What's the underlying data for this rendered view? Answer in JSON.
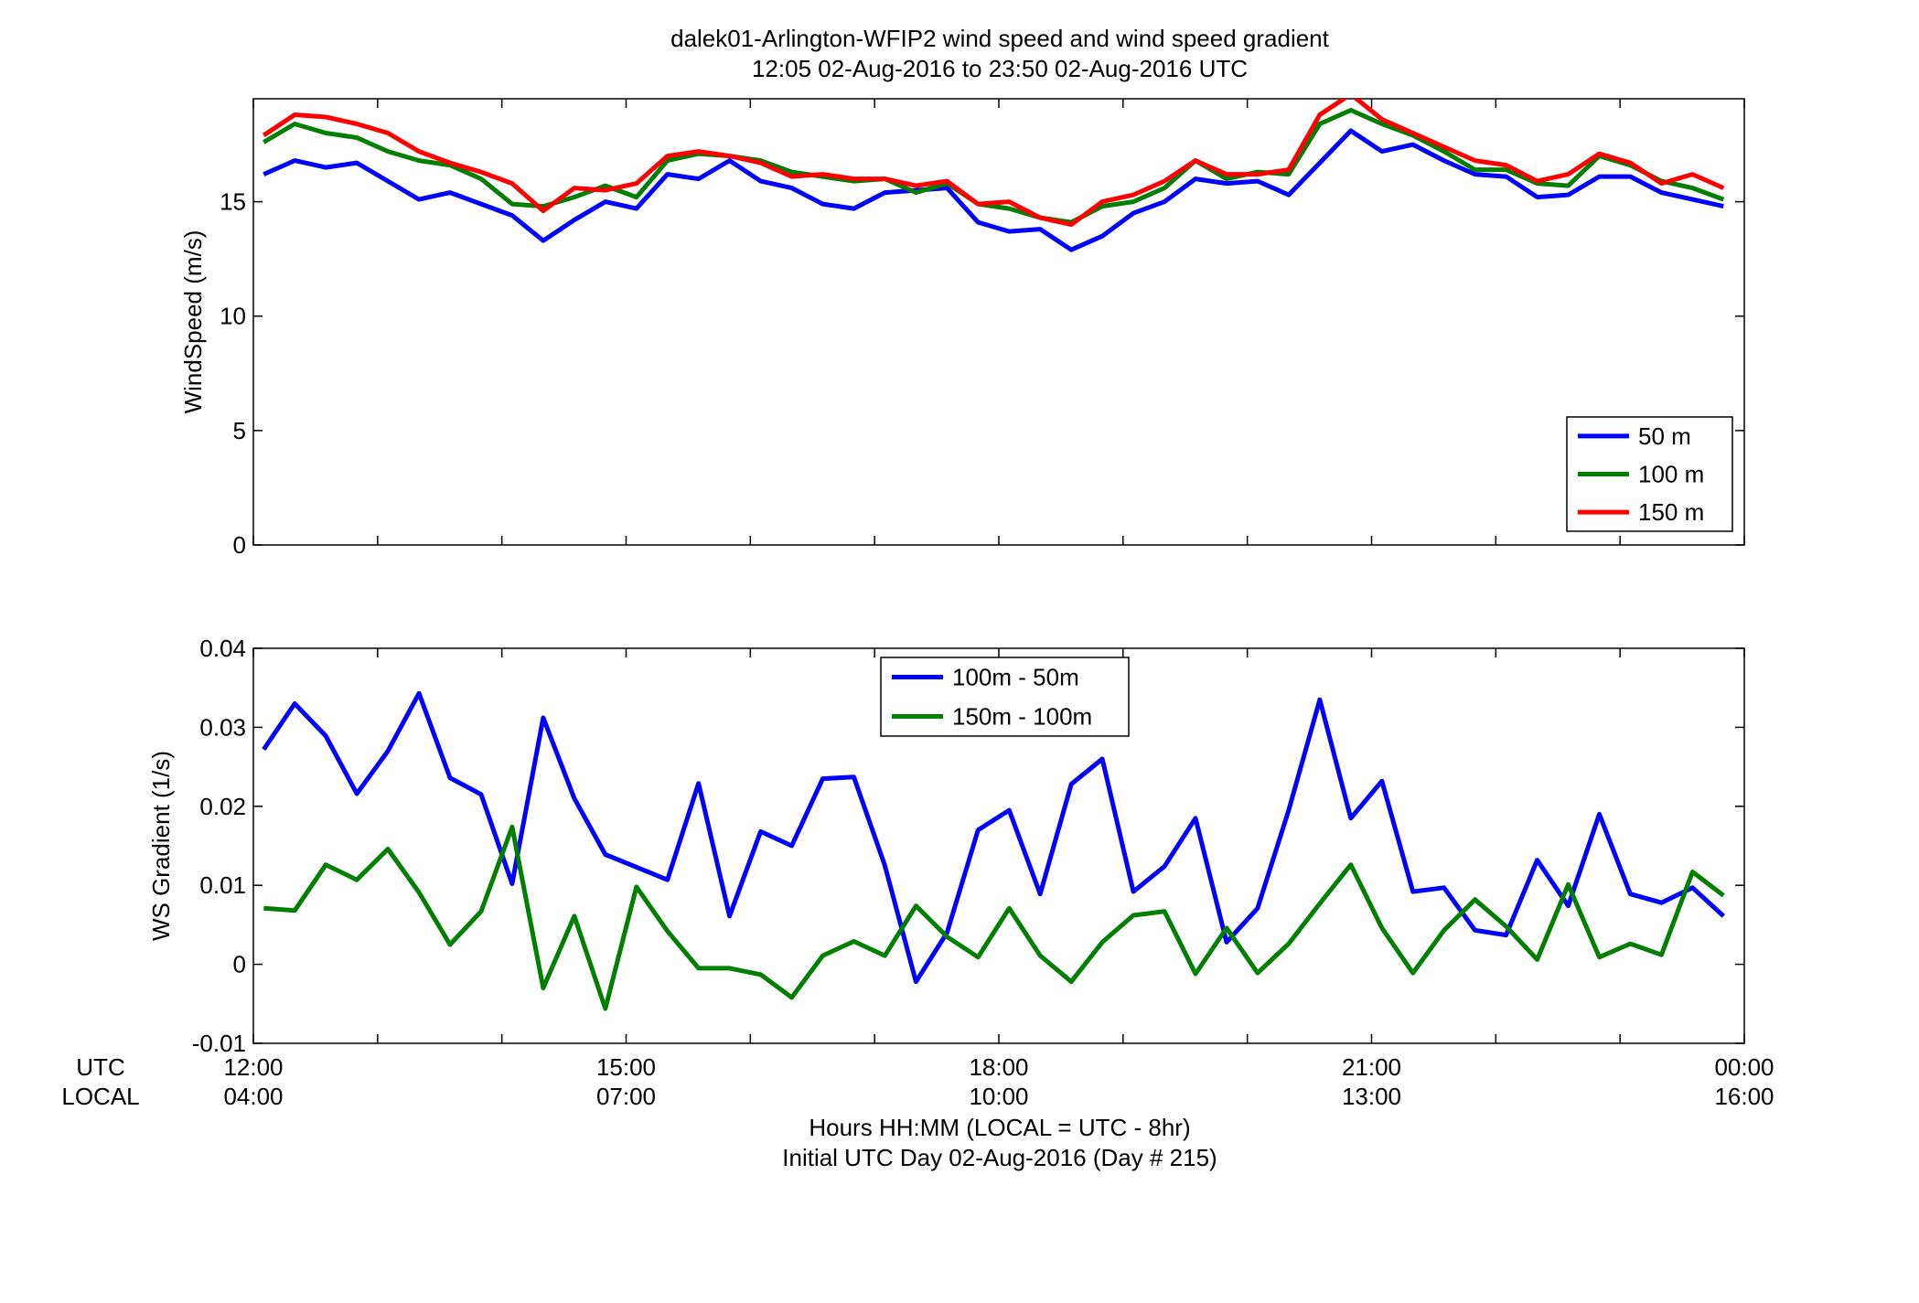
{
  "figure": {
    "title_line1": "dalek01-Arlington-WFIP2  wind speed and wind speed gradient",
    "title_line2": "12:05 02-Aug-2016 to 23:50 02-Aug-2016  UTC",
    "row_label_utc": "UTC",
    "row_label_local": "LOCAL",
    "xlabel_line1": "Hours HH:MM  (LOCAL = UTC - 8hr)",
    "xlabel_line2": "Initial UTC Day 02-Aug-2016 (Day # 215)",
    "utc_ticks": [
      "12:00",
      "15:00",
      "18:00",
      "21:00",
      "00:00"
    ],
    "local_ticks": [
      "04:00",
      "07:00",
      "10:00",
      "13:00",
      "16:00"
    ]
  },
  "chart_data": [
    {
      "type": "line",
      "ylabel": "WindSpeed (m/s)",
      "xlim": [
        12.0,
        24.0
      ],
      "ylim": [
        0,
        19.5
      ],
      "yticks": [
        0,
        5,
        10,
        15
      ],
      "legend_position": "bottom-right",
      "x": [
        12.083,
        12.333,
        12.583,
        12.833,
        13.083,
        13.333,
        13.583,
        13.833,
        14.083,
        14.333,
        14.583,
        14.833,
        15.083,
        15.333,
        15.583,
        15.833,
        16.083,
        16.333,
        16.583,
        16.833,
        17.083,
        17.333,
        17.583,
        17.833,
        18.083,
        18.333,
        18.583,
        18.833,
        19.083,
        19.333,
        19.583,
        19.833,
        20.083,
        20.333,
        20.583,
        20.833,
        21.083,
        21.333,
        21.583,
        21.833,
        22.083,
        22.333,
        22.583,
        22.833,
        23.083,
        23.333,
        23.583,
        23.833
      ],
      "series": [
        {
          "name": "50 m",
          "color": "#0000ff",
          "values": [
            16.2,
            16.8,
            16.5,
            16.7,
            15.9,
            15.1,
            15.4,
            14.9,
            14.4,
            13.3,
            14.2,
            15.0,
            14.7,
            16.2,
            16.0,
            16.8,
            15.9,
            15.6,
            14.9,
            14.7,
            15.4,
            15.5,
            15.6,
            14.1,
            13.7,
            13.8,
            12.9,
            13.5,
            14.5,
            15.0,
            16.0,
            15.8,
            15.9,
            15.3,
            16.7,
            18.1,
            17.2,
            17.5,
            16.8,
            16.2,
            16.1,
            15.2,
            15.3,
            16.1,
            16.1,
            15.4,
            15.1,
            14.8
          ]
        },
        {
          "name": "100 m",
          "color": "#007f00",
          "values": [
            17.6,
            18.4,
            18.0,
            17.8,
            17.2,
            16.8,
            16.6,
            16.0,
            14.9,
            14.8,
            15.2,
            15.7,
            15.2,
            16.8,
            17.1,
            17.0,
            16.8,
            16.3,
            16.1,
            15.9,
            16.0,
            15.4,
            15.8,
            14.9,
            14.7,
            14.3,
            14.1,
            14.8,
            15.0,
            15.6,
            16.8,
            16.0,
            16.3,
            16.2,
            18.4,
            19.0,
            18.4,
            17.9,
            17.2,
            16.4,
            16.4,
            15.8,
            15.7,
            17.0,
            16.6,
            15.9,
            15.6,
            15.1
          ]
        },
        {
          "name": "150 m",
          "color": "#ff0000",
          "values": [
            17.9,
            18.8,
            18.7,
            18.4,
            18.0,
            17.2,
            16.7,
            16.3,
            15.8,
            14.6,
            15.6,
            15.5,
            15.8,
            17.0,
            17.2,
            17.0,
            16.7,
            16.1,
            16.2,
            16.0,
            16.0,
            15.7,
            15.9,
            14.9,
            15.0,
            14.3,
            14.0,
            15.0,
            15.3,
            15.9,
            16.8,
            16.2,
            16.2,
            16.4,
            18.8,
            19.7,
            18.6,
            18.0,
            17.4,
            16.8,
            16.6,
            15.9,
            16.2,
            17.1,
            16.7,
            15.8,
            16.2,
            15.6
          ]
        }
      ]
    },
    {
      "type": "line",
      "ylabel": "WS Gradient (1/s)",
      "xlim": [
        12.0,
        24.0
      ],
      "ylim": [
        -0.01,
        0.04
      ],
      "yticks": [
        -0.01,
        0,
        0.01,
        0.02,
        0.03,
        0.04
      ],
      "legend_position": "top-center",
      "x": [
        12.083,
        12.333,
        12.583,
        12.833,
        13.083,
        13.333,
        13.583,
        13.833,
        14.083,
        14.333,
        14.583,
        14.833,
        15.083,
        15.333,
        15.583,
        15.833,
        16.083,
        16.333,
        16.583,
        16.833,
        17.083,
        17.333,
        17.583,
        17.833,
        18.083,
        18.333,
        18.583,
        18.833,
        19.083,
        19.333,
        19.583,
        19.833,
        20.083,
        20.333,
        20.583,
        20.833,
        21.083,
        21.333,
        21.583,
        21.833,
        22.083,
        22.333,
        22.583,
        22.833,
        23.083,
        23.333,
        23.583,
        23.833
      ],
      "series": [
        {
          "name": "100m - 50m",
          "color": "#0000ff",
          "values": [
            0.0272,
            0.033,
            0.0289,
            0.0216,
            0.027,
            0.0343,
            0.0236,
            0.0215,
            0.0102,
            0.0312,
            0.021,
            0.0139,
            0.0123,
            0.0107,
            0.0229,
            0.0061,
            0.0168,
            0.015,
            0.0235,
            0.0237,
            0.0125,
            -0.0022,
            0.004,
            0.017,
            0.0195,
            0.0089,
            0.0228,
            0.026,
            0.0092,
            0.0124,
            0.0185,
            0.0028,
            0.0071,
            0.0195,
            0.0335,
            0.0185,
            0.0232,
            0.0092,
            0.0097,
            0.0043,
            0.0037,
            0.0132,
            0.0074,
            0.019,
            0.0089,
            0.0078,
            0.0097,
            0.0061
          ]
        },
        {
          "name": "150m - 100m",
          "color": "#007f00",
          "values": [
            0.0071,
            0.0068,
            0.0126,
            0.0107,
            0.0146,
            0.0091,
            0.0025,
            0.0067,
            0.0174,
            -0.003,
            0.0061,
            -0.0056,
            0.0098,
            0.0042,
            -0.0005,
            -0.0005,
            -0.0013,
            -0.0042,
            0.0011,
            0.0029,
            0.0011,
            0.0074,
            0.0035,
            0.0009,
            0.0071,
            0.0011,
            -0.0022,
            0.0028,
            0.0062,
            0.0067,
            -0.0012,
            0.0046,
            -0.0011,
            0.0026,
            0.0077,
            0.0126,
            0.0046,
            -0.0011,
            0.0043,
            0.0082,
            0.0048,
            0.0006,
            0.0101,
            0.0009,
            0.0026,
            0.0012,
            0.0117,
            0.0087
          ]
        }
      ]
    }
  ]
}
